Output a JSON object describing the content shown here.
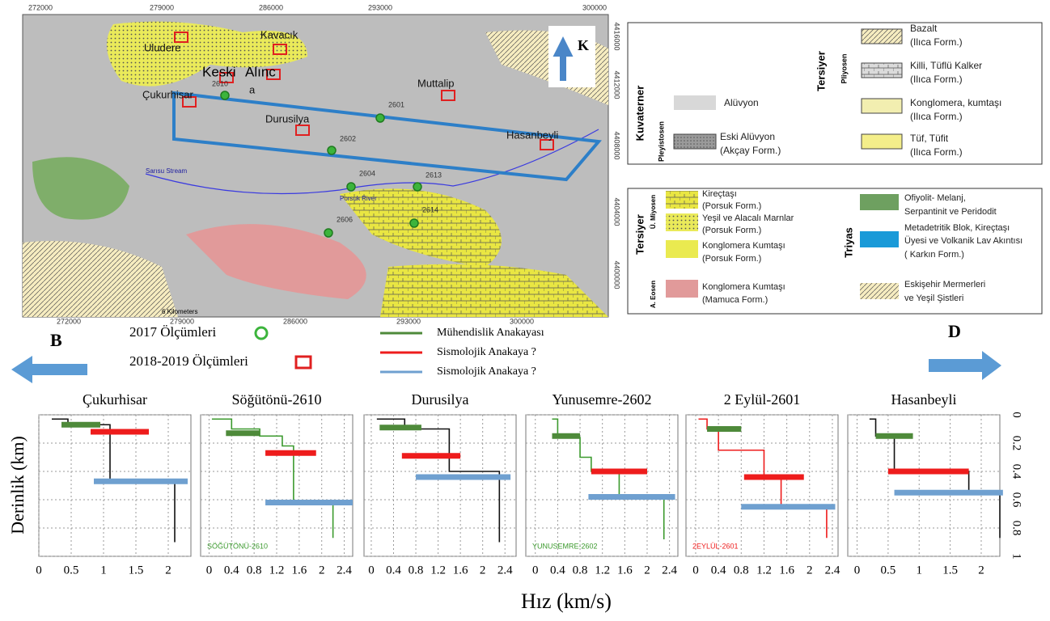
{
  "map": {
    "xticks": [
      "272000",
      "279000",
      "286000",
      "293000",
      "300000"
    ],
    "yticks": [
      "4416000",
      "4412000",
      "4408000",
      "4404000",
      "4400000"
    ],
    "labels": [
      "Uludere",
      "Kavacık",
      "Keski",
      "Alınc",
      "a",
      "2610",
      "Çukurhisar",
      "Muttalip",
      "Durusilya",
      "2601",
      "2602",
      "Hasanbeyli",
      "2604",
      "2613",
      "2614",
      "2606",
      "Sarısu Stream",
      "Porsuk River",
      "6 Kilometers"
    ],
    "north": "K"
  },
  "legend_top": {
    "groups": [
      "Kuvaterner",
      "Pleyistosen",
      "Tersiyer",
      "Pliyosen"
    ],
    "items": [
      {
        "lines": [
          "Alüvyon"
        ]
      },
      {
        "lines": [
          "Eski Alüvyon",
          "(Akçay Form.)"
        ]
      },
      {
        "lines": [
          "Bazalt",
          "(Ilıca Form.)"
        ]
      },
      {
        "lines": [
          "Killi, Tüflü Kalker",
          "(Ilıca Form.)"
        ]
      },
      {
        "lines": [
          "Konglomera, kumtaşı",
          "(Ilıca Form.)"
        ]
      },
      {
        "lines": [
          "Tüf, Tüfit",
          "(Ilıca Form.)"
        ]
      }
    ]
  },
  "legend_bottom": {
    "groups": [
      "Tersiyer",
      "Ü. Miyosen",
      "A. Eosen",
      "Triyas"
    ],
    "items": [
      {
        "lines": [
          "Kireçtaşı",
          "(Porsuk Form.)"
        ]
      },
      {
        "lines": [
          "Yeşil ve Alacalı Marnlar",
          "(Porsuk Form.)"
        ]
      },
      {
        "lines": [
          "Konglomera Kumtaşı",
          "(Porsuk Form.)"
        ]
      },
      {
        "lines": [
          "Konglomera Kumtaşı",
          "(Mamuca Form.)"
        ]
      },
      {
        "lines": [
          "Ofiyolit- Melanj,",
          "Serpantinit ve Peridodit"
        ]
      },
      {
        "lines": [
          "Metadetritik Blok, Kireçtaşı",
          "Üyesi ve Volkanik Lav Akıntısı",
          "( Karkın Form.)"
        ]
      },
      {
        "lines": [
          "Eskişehir Mermerleri",
          "ve Yeşil Şistleri"
        ]
      }
    ]
  },
  "key": {
    "west": "B",
    "east": "D",
    "markers": [
      "2017 Ölçümleri",
      "2018-2019 Ölçümleri"
    ],
    "lines": [
      {
        "name": "Mühendislik Anakayası",
        "color": "#4e8a3a"
      },
      {
        "name": "Sismolojik Anakaya ?",
        "color": "#ee1c1c"
      },
      {
        "name": "Sismolojik Anakaya ?",
        "color": "#6fa0d0"
      }
    ]
  },
  "profiles": {
    "ylabel": "Derinlik (km)",
    "xlabel": "Hız (km/s)"
  },
  "chart_data": [
    {
      "type": "profile",
      "title": "Çukurhisar",
      "xlim": [
        0,
        2.35
      ],
      "ylim": [
        0,
        1
      ],
      "xticks": [
        0,
        0.5,
        1,
        1.5,
        2
      ],
      "profile": {
        "color": "#111111",
        "x": [
          0.2,
          0.45,
          0.45,
          1.1,
          1.1,
          2.1,
          2.1
        ],
        "y": [
          0.03,
          0.03,
          0.07,
          0.07,
          0.47,
          0.47,
          0.9
        ]
      },
      "bars": [
        {
          "color": "#4e8a3a",
          "depth": 0.07,
          "x": [
            0.35,
            0.95
          ]
        },
        {
          "color": "#ee1c1c",
          "depth": 0.12,
          "x": [
            0.8,
            1.7
          ]
        },
        {
          "color": "#6fa0d0",
          "depth": 0.47,
          "x": [
            0.85,
            2.3
          ]
        }
      ]
    },
    {
      "type": "profile",
      "title": "Söğütönü-2610",
      "label": "SÖĞÜTÖNÜ-2610",
      "xlim": [
        -0.15,
        2.55
      ],
      "ylim": [
        0,
        1
      ],
      "xticks": [
        0,
        0.4,
        0.8,
        1.2,
        1.6,
        2,
        2.4
      ],
      "profile": {
        "color": "#3c9a2e",
        "x": [
          0.05,
          0.4,
          0.4,
          0.9,
          0.9,
          1.3,
          1.3,
          1.5,
          1.5,
          2.2,
          2.2
        ],
        "y": [
          0.03,
          0.03,
          0.1,
          0.1,
          0.15,
          0.15,
          0.22,
          0.22,
          0.62,
          0.62,
          0.87
        ]
      },
      "bars": [
        {
          "color": "#4e8a3a",
          "depth": 0.13,
          "x": [
            0.3,
            0.9
          ]
        },
        {
          "color": "#ee1c1c",
          "depth": 0.27,
          "x": [
            1.0,
            1.9
          ]
        },
        {
          "color": "#6fa0d0",
          "depth": 0.62,
          "x": [
            1.0,
            2.55
          ]
        }
      ]
    },
    {
      "type": "profile",
      "title": "Durusilya",
      "xlim": [
        -0.13,
        2.6
      ],
      "ylim": [
        0,
        1
      ],
      "xticks": [
        0,
        0.4,
        0.8,
        1.2,
        1.6,
        2,
        2.4
      ],
      "profile": {
        "color": "#111111",
        "x": [
          0.1,
          0.6,
          0.6,
          1.4,
          1.4,
          2.3,
          2.3
        ],
        "y": [
          0.03,
          0.03,
          0.1,
          0.1,
          0.4,
          0.4,
          0.9
        ]
      },
      "bars": [
        {
          "color": "#4e8a3a",
          "depth": 0.09,
          "x": [
            0.15,
            0.9
          ]
        },
        {
          "color": "#ee1c1c",
          "depth": 0.29,
          "x": [
            0.55,
            1.6
          ]
        },
        {
          "color": "#6fa0d0",
          "depth": 0.44,
          "x": [
            0.8,
            2.5
          ]
        }
      ]
    },
    {
      "type": "profile",
      "title": "Yunusemre-2602",
      "label": "YUNUSEMRE-2602",
      "xlim": [
        -0.17,
        2.55
      ],
      "ylim": [
        0,
        1
      ],
      "xticks": [
        0,
        0.4,
        0.8,
        1.2,
        1.6,
        2,
        2.4
      ],
      "profile": {
        "color": "#3c9a2e",
        "x": [
          0.3,
          0.4,
          0.4,
          0.8,
          0.8,
          1.0,
          1.0,
          1.5,
          1.5,
          2.3,
          2.3
        ],
        "y": [
          0.03,
          0.03,
          0.16,
          0.16,
          0.3,
          0.3,
          0.4,
          0.4,
          0.58,
          0.58,
          0.88
        ]
      },
      "bars": [
        {
          "color": "#4e8a3a",
          "depth": 0.15,
          "x": [
            0.3,
            0.8
          ]
        },
        {
          "color": "#ee1c1c",
          "depth": 0.4,
          "x": [
            1.0,
            2.0
          ]
        },
        {
          "color": "#6fa0d0",
          "depth": 0.58,
          "x": [
            0.95,
            2.5
          ]
        }
      ]
    },
    {
      "type": "profile",
      "title": "2 Eylül-2601",
      "label": "2EYLÜL-2601",
      "xlim": [
        -0.17,
        2.5
      ],
      "ylim": [
        0,
        1
      ],
      "xticks": [
        0,
        0.4,
        0.8,
        1.2,
        1.6,
        2,
        2.4
      ],
      "profile": {
        "color": "#ee1c1c",
        "x": [
          0.05,
          0.2,
          0.2,
          0.4,
          0.4,
          1.2,
          1.2,
          1.5,
          1.5,
          2.3,
          2.3
        ],
        "y": [
          0.03,
          0.03,
          0.1,
          0.1,
          0.25,
          0.25,
          0.44,
          0.44,
          0.65,
          0.65,
          0.87
        ]
      },
      "bars": [
        {
          "color": "#4e8a3a",
          "depth": 0.1,
          "x": [
            0.2,
            0.8
          ]
        },
        {
          "color": "#ee1c1c",
          "depth": 0.44,
          "x": [
            0.85,
            1.9
          ]
        },
        {
          "color": "#6fa0d0",
          "depth": 0.65,
          "x": [
            0.8,
            2.45
          ]
        }
      ]
    },
    {
      "type": "profile",
      "title": "Hasanbeyli",
      "xlim": [
        -0.15,
        2.3
      ],
      "ylim": [
        0,
        1
      ],
      "xticks": [
        0,
        0.5,
        1,
        1.5,
        2
      ],
      "yticks": [
        0,
        0.2,
        0.4,
        0.6,
        0.8,
        1
      ],
      "profile": {
        "color": "#111111",
        "x": [
          0.2,
          0.3,
          0.3,
          0.6,
          0.6,
          1.8,
          1.8,
          2.3,
          2.3
        ],
        "y": [
          0.03,
          0.03,
          0.15,
          0.15,
          0.4,
          0.4,
          0.54,
          0.54,
          0.87
        ]
      },
      "bars": [
        {
          "color": "#4e8a3a",
          "depth": 0.15,
          "x": [
            0.3,
            0.9
          ]
        },
        {
          "color": "#ee1c1c",
          "depth": 0.4,
          "x": [
            0.5,
            1.8
          ]
        },
        {
          "color": "#6fa0d0",
          "depth": 0.55,
          "x": [
            0.6,
            2.35
          ]
        }
      ]
    }
  ]
}
